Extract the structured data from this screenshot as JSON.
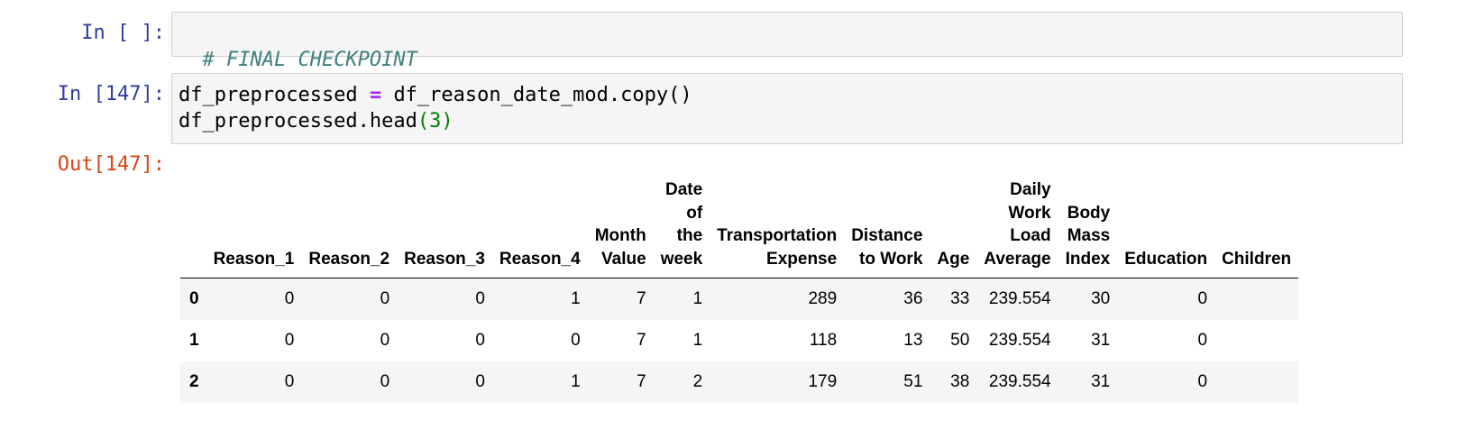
{
  "cells": [
    {
      "prompt": "In [ ]:",
      "code_comment": "# FINAL CHECKPOINT"
    },
    {
      "prompt": "In [147]:",
      "line1": {
        "var": "df_preprocessed",
        "op": "=",
        "rhs": "df_reason_date_mod.copy()"
      },
      "line2": {
        "call": "df_preprocessed.head",
        "open": "(",
        "arg": "3",
        "close": ")"
      }
    }
  ],
  "output": {
    "prompt": "Out[147]:",
    "columns": [
      [
        "Reason_1"
      ],
      [
        "Reason_2"
      ],
      [
        "Reason_3"
      ],
      [
        "Reason_4"
      ],
      [
        "Month",
        "Value"
      ],
      [
        "Date",
        "of",
        "the",
        "week"
      ],
      [
        "Transportation",
        "Expense"
      ],
      [
        "Distance",
        "to Work"
      ],
      [
        "Age"
      ],
      [
        "Daily",
        "Work",
        "Load",
        "Average"
      ],
      [
        "Body",
        "Mass",
        "Index"
      ],
      [
        "Education"
      ],
      [
        "Children"
      ]
    ],
    "rows": [
      {
        "index": "0",
        "values": [
          "0",
          "0",
          "0",
          "1",
          "7",
          "1",
          "289",
          "36",
          "33",
          "239.554",
          "30",
          "0",
          ""
        ]
      },
      {
        "index": "1",
        "values": [
          "0",
          "0",
          "0",
          "0",
          "7",
          "1",
          "118",
          "13",
          "50",
          "239.554",
          "31",
          "0",
          ""
        ]
      },
      {
        "index": "2",
        "values": [
          "0",
          "0",
          "0",
          "1",
          "7",
          "2",
          "179",
          "51",
          "38",
          "239.554",
          "31",
          "0",
          ""
        ]
      }
    ]
  }
}
